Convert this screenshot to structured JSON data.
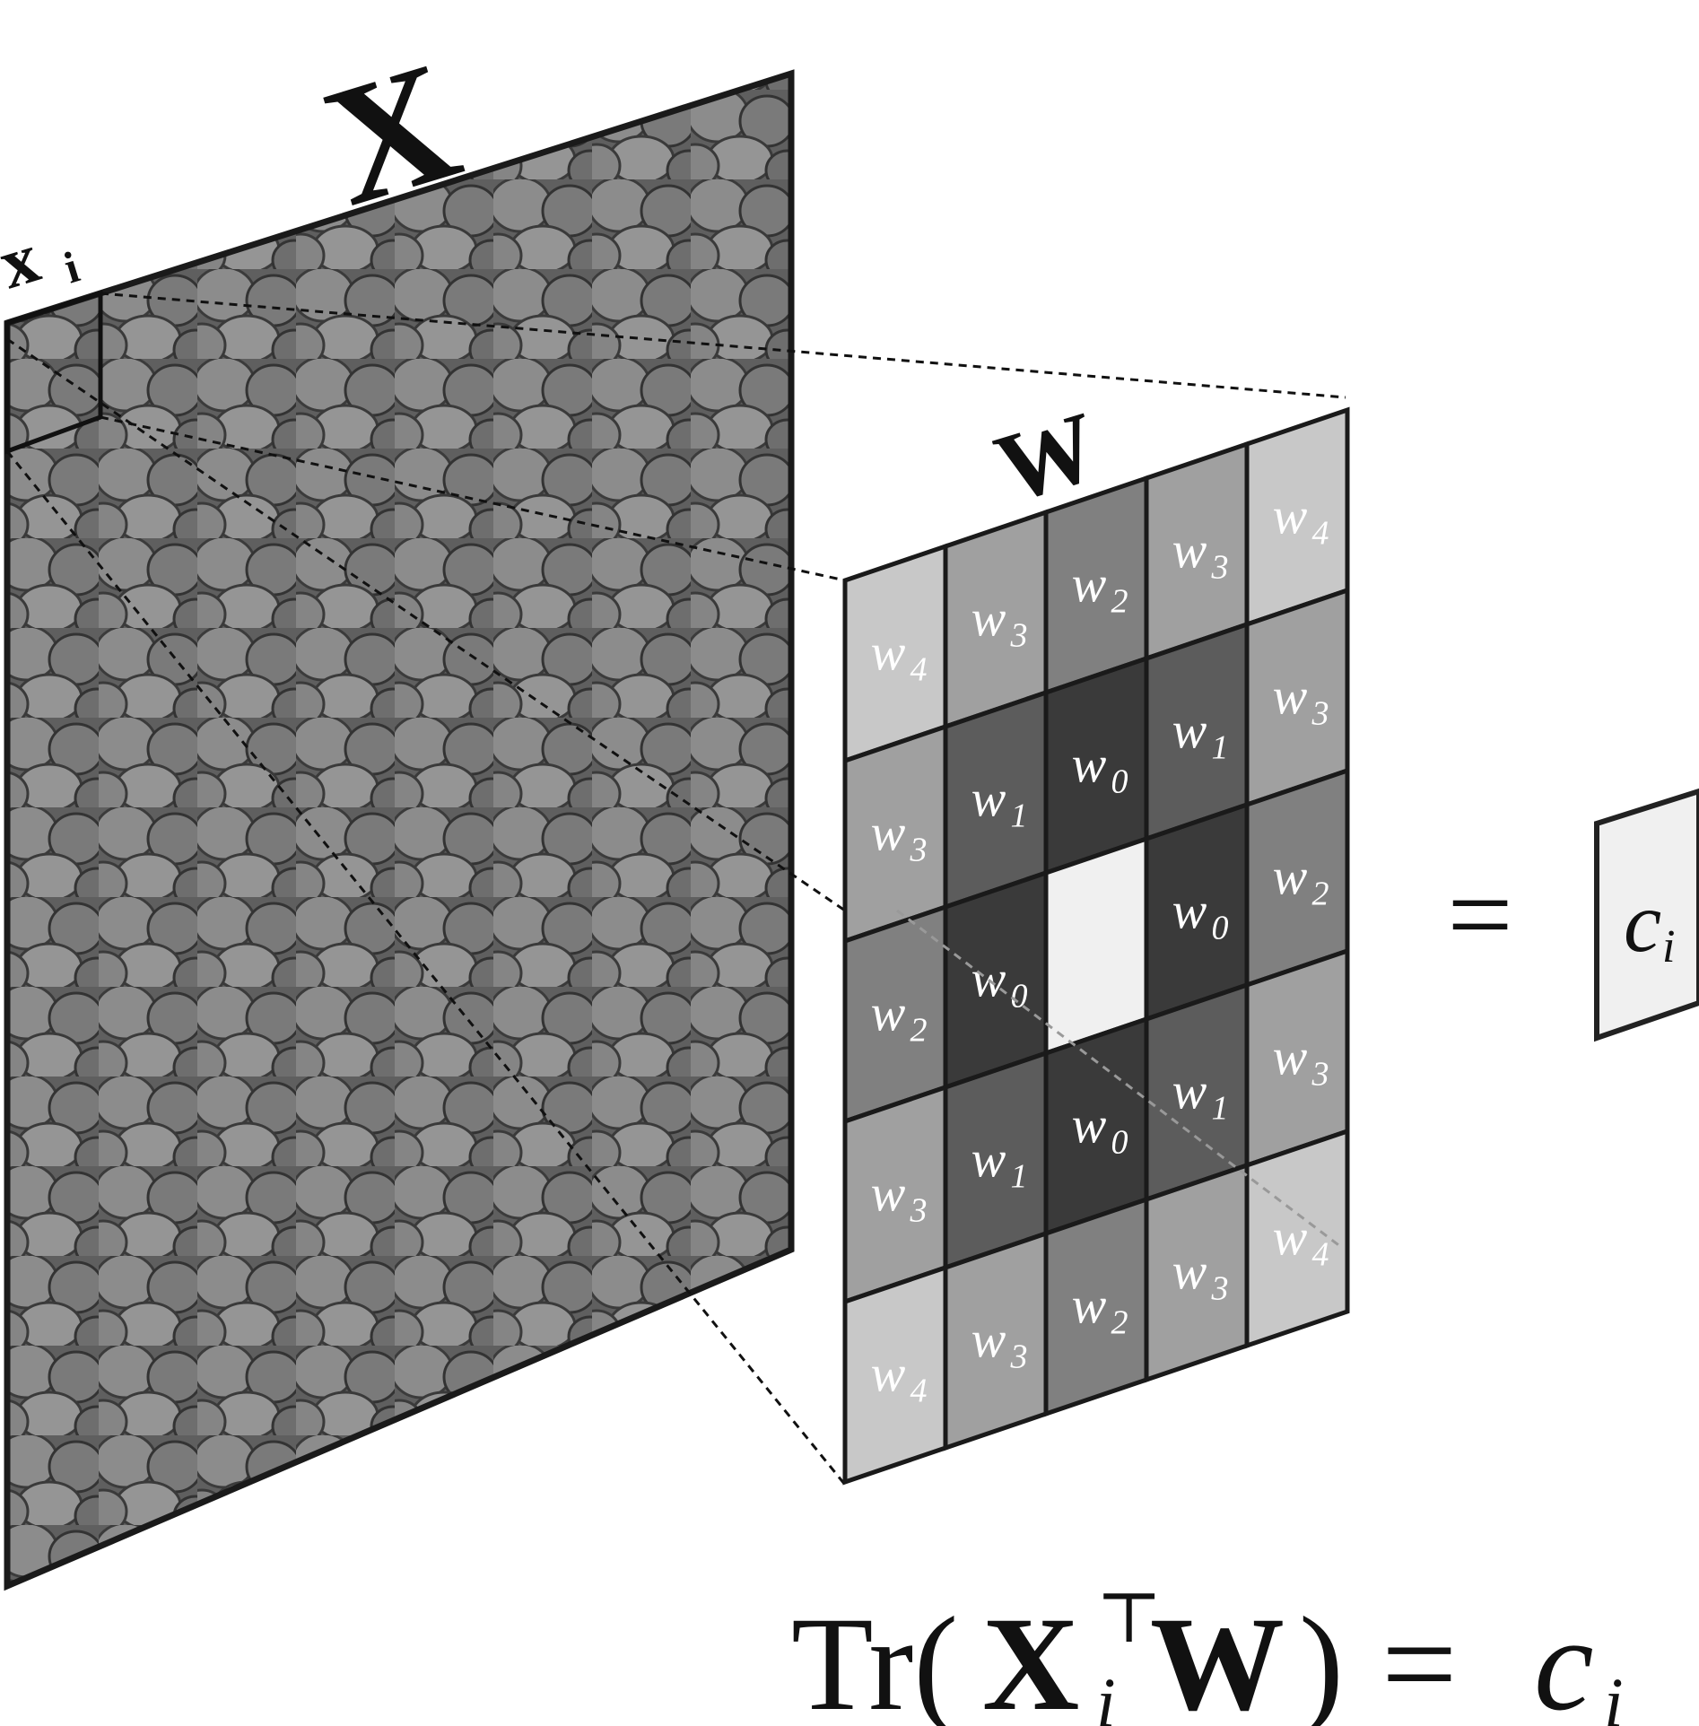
{
  "labels": {
    "image_matrix": "X",
    "patch": "x",
    "patch_subscript": "i",
    "kernel": "W",
    "equals": "=",
    "output": "c",
    "output_subscript": "i"
  },
  "equation": {
    "tr": "Tr(",
    "X": "X",
    "sup": "⊤",
    "sub": "i",
    "W": "W",
    "close": ")",
    "equals": "=",
    "c": "c",
    "c_sub": "i"
  },
  "kernel_grid": [
    [
      "4",
      "3",
      "2",
      "3",
      "4"
    ],
    [
      "3",
      "1",
      "0",
      "1",
      "3"
    ],
    [
      "2",
      "0",
      "",
      "0",
      "2"
    ],
    [
      "3",
      "1",
      "0",
      "1",
      "3"
    ],
    [
      "4",
      "3",
      "2",
      "3",
      "4"
    ]
  ],
  "kernel_symbol": "w",
  "kernel_colors": {
    "0": "#3a3a3a",
    "1": "#5c5c5c",
    "2": "#808080",
    "3": "#a0a0a0",
    "4": "#c8c8c8",
    "center": "#f0f0f0"
  }
}
